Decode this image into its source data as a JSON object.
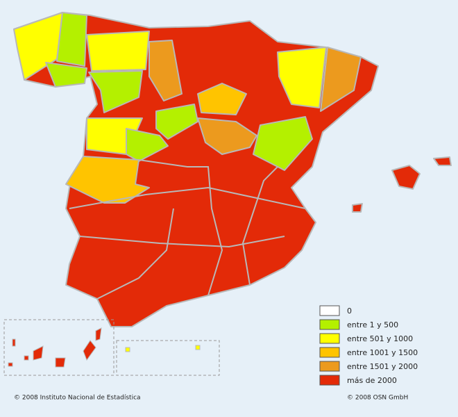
{
  "legend": [
    {
      "label": "0",
      "color": "#ffffff"
    },
    {
      "label": "entre 1 y 500",
      "color": "#b4f000"
    },
    {
      "label": "entre 501 y 1000",
      "color": "#ffff00"
    },
    {
      "label": "entre 1001 y 1500",
      "color": "#ffc400"
    },
    {
      "label": "entre 1501 y 2000",
      "color": "#ec9a1e"
    },
    {
      "label": "más de 2000",
      "color": "#e32a08"
    }
  ],
  "footer": {
    "left": "© 2008 Instituto Nacional de Estadística",
    "right": "© 2008 OSN GmbH"
  }
}
